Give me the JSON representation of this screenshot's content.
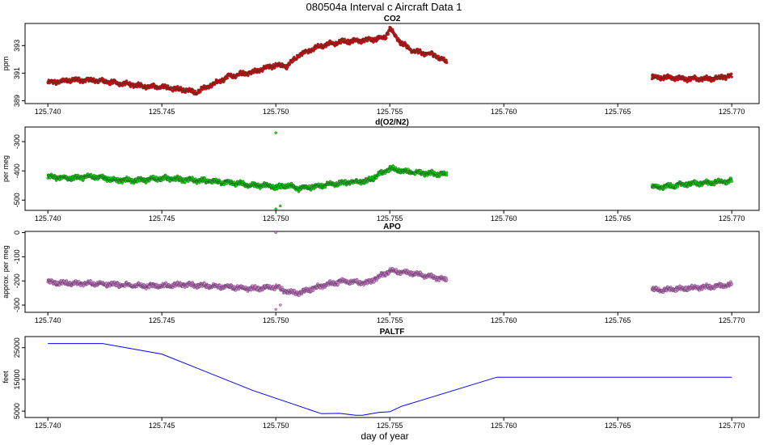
{
  "title": "080504a   Interval c Aircraft Data 1",
  "xlabel": "day of year",
  "chart_data": [
    {
      "type": "scatter",
      "title": "CO2",
      "ylabel": "ppm",
      "color": "#ff0000",
      "xlim": [
        125.739,
        125.7712
      ],
      "ylim": [
        388.8,
        394.6
      ],
      "x_ticks": [
        125.74,
        125.745,
        125.75,
        125.755,
        125.76,
        125.765,
        125.77
      ],
      "x_tick_labels": [
        "125.740",
        "125.745",
        "125.750",
        "125.755",
        "125.760",
        "125.765",
        "125.770"
      ],
      "y_ticks": [
        389,
        391,
        393
      ],
      "y_tick_labels": [
        "389",
        "391",
        "393"
      ],
      "series": [
        {
          "x": [
            125.74,
            125.741,
            125.742,
            125.743,
            125.744,
            125.745,
            125.746,
            125.7465,
            125.747,
            125.748,
            125.749,
            125.75,
            125.7505,
            125.751,
            125.752,
            125.753,
            125.754,
            125.7548,
            125.755,
            125.7555,
            125.756,
            125.757,
            125.7575
          ],
          "y": [
            390.3,
            390.5,
            390.5,
            390.3,
            390.1,
            390.0,
            389.8,
            389.6,
            390.0,
            390.8,
            391.1,
            391.6,
            391.5,
            392.3,
            393.0,
            393.3,
            393.4,
            393.6,
            394.2,
            393.2,
            392.6,
            392.3,
            391.8
          ]
        },
        {
          "x": [
            125.7665,
            125.767,
            125.768,
            125.769,
            125.77
          ],
          "y": [
            390.7,
            390.7,
            390.6,
            390.6,
            390.8
          ]
        }
      ]
    },
    {
      "type": "scatter",
      "title": "d(O2/N2)",
      "ylabel": "per meg",
      "color": "#00ee00",
      "xlim": [
        125.739,
        125.7712
      ],
      "ylim": [
        -535,
        -250
      ],
      "x_ticks": [
        125.74,
        125.745,
        125.75,
        125.755,
        125.76,
        125.765,
        125.77
      ],
      "x_tick_labels": [
        "125.740",
        "125.745",
        "125.750",
        "125.755",
        "125.760",
        "125.765",
        "125.770"
      ],
      "y_ticks": [
        -300,
        -400,
        -500
      ],
      "y_tick_labels": [
        "-300",
        "-400",
        "-500"
      ],
      "series": [
        {
          "x": [
            125.74,
            125.741,
            125.742,
            125.743,
            125.744,
            125.745,
            125.746,
            125.747,
            125.748,
            125.749,
            125.7498,
            125.75,
            125.7505,
            125.751,
            125.752,
            125.753,
            125.754,
            125.755,
            125.756,
            125.757,
            125.7575
          ],
          "y": [
            -420,
            -425,
            -418,
            -432,
            -432,
            -425,
            -430,
            -435,
            -440,
            -450,
            -450,
            -458,
            -450,
            -460,
            -450,
            -440,
            -435,
            -392,
            -405,
            -410,
            -412
          ],
          "outliers": [
            [
              125.75,
              -270
            ],
            [
              125.75,
              -530
            ],
            [
              125.7502,
              -520
            ]
          ]
        },
        {
          "x": [
            125.7665,
            125.767,
            125.768,
            125.769,
            125.77
          ],
          "y": [
            -455,
            -455,
            -445,
            -440,
            -435
          ]
        }
      ]
    },
    {
      "type": "scatter",
      "title": "APO",
      "ylabel": "approx. per meg",
      "color": "#ee82ee",
      "xlim": [
        125.739,
        125.7712
      ],
      "ylim": [
        -330,
        5
      ],
      "x_ticks": [
        125.74,
        125.745,
        125.75,
        125.755,
        125.76,
        125.765,
        125.77
      ],
      "x_tick_labels": [
        "125.740",
        "125.745",
        "125.750",
        "125.755",
        "125.760",
        "125.765",
        "125.770"
      ],
      "y_ticks": [
        0,
        -100,
        -200,
        -300
      ],
      "y_tick_labels": [
        "0",
        "-100",
        "-200",
        "-300"
      ],
      "series": [
        {
          "x": [
            125.74,
            125.741,
            125.742,
            125.743,
            125.744,
            125.745,
            125.746,
            125.747,
            125.748,
            125.749,
            125.75,
            125.7505,
            125.751,
            125.752,
            125.753,
            125.754,
            125.755,
            125.756,
            125.757,
            125.7575
          ],
          "y": [
            -205,
            -210,
            -210,
            -215,
            -220,
            -220,
            -215,
            -220,
            -225,
            -232,
            -225,
            -245,
            -250,
            -220,
            -200,
            -210,
            -158,
            -168,
            -185,
            -195
          ],
          "outliers": [
            [
              125.75,
              0
            ],
            [
              125.75,
              -318
            ],
            [
              125.7502,
              -300
            ]
          ]
        },
        {
          "x": [
            125.7665,
            125.767,
            125.768,
            125.769,
            125.77
          ],
          "y": [
            -235,
            -238,
            -230,
            -225,
            -215
          ]
        }
      ]
    },
    {
      "type": "line",
      "title": "PALTF",
      "ylabel": "feet",
      "color": "#0000ff",
      "xlim": [
        125.739,
        125.7712
      ],
      "ylim": [
        3000,
        28500
      ],
      "x_ticks": [
        125.74,
        125.745,
        125.75,
        125.755,
        125.76,
        125.765,
        125.77
      ],
      "x_tick_labels": [
        "125.740",
        "125.745",
        "125.750",
        "125.755",
        "125.760",
        "125.765",
        "125.770"
      ],
      "y_ticks": [
        5000,
        15000,
        25000
      ],
      "y_tick_labels": [
        "5000",
        "15000",
        "25000"
      ],
      "series": [
        {
          "x": [
            125.74,
            125.7424,
            125.745,
            125.749,
            125.752,
            125.7528,
            125.7535,
            125.7538,
            125.7545,
            125.755,
            125.7555,
            125.7597,
            125.77
          ],
          "y": [
            26300,
            26300,
            23000,
            11500,
            4200,
            4300,
            3700,
            3700,
            4600,
            4800,
            6500,
            15700,
            15700
          ]
        }
      ]
    }
  ]
}
